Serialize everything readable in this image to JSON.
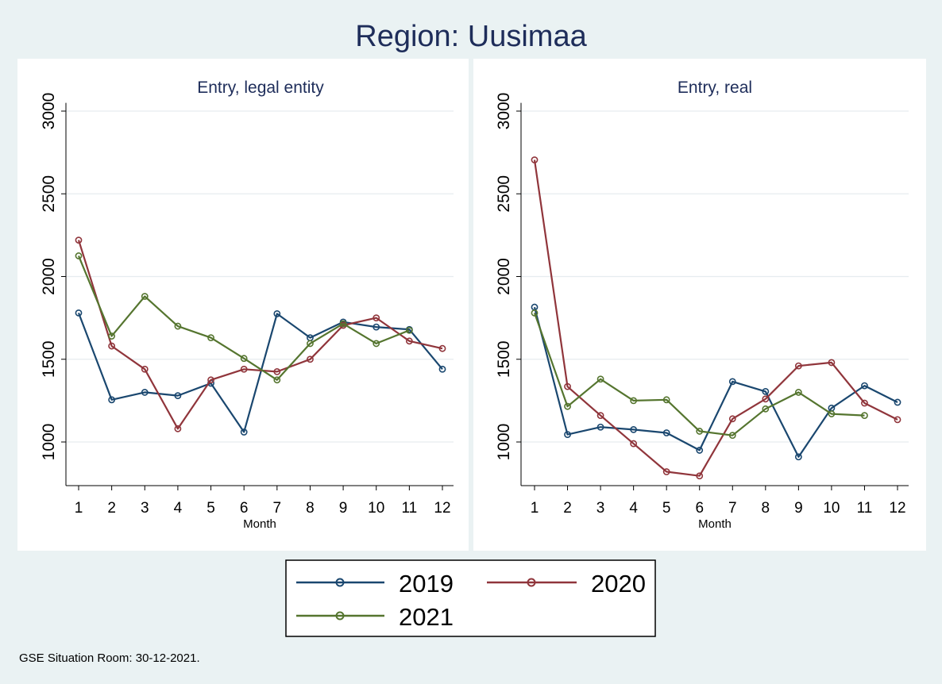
{
  "title": "Region: Uusimaa",
  "footnote": "GSE Situation Room: 30-12-2021.",
  "colors": {
    "2019": "#1a476f",
    "2020": "#90353b",
    "2021": "#55752f",
    "title": "#1e2d5a",
    "background": "#eaf2f3",
    "panel": "#ffffff",
    "grid": "#e6ecef"
  },
  "legend": {
    "items": [
      "2019",
      "2020",
      "2021"
    ]
  },
  "chart_data": [
    {
      "type": "line",
      "title": "Entry, legal entity",
      "xlabel": "Month",
      "ylabel": "",
      "x": [
        1,
        2,
        3,
        4,
        5,
        6,
        7,
        8,
        9,
        10,
        11,
        12
      ],
      "xticks": [
        "1",
        "2",
        "3",
        "4",
        "5",
        "6",
        "7",
        "8",
        "9",
        "10",
        "11",
        "12"
      ],
      "yticks": [
        1000,
        1500,
        2000,
        2500,
        3000
      ],
      "ytick_labels": [
        "1000",
        "1500",
        "2000",
        "2500",
        "3000"
      ],
      "ylim": [
        800,
        3050
      ],
      "grid": true,
      "series": [
        {
          "name": "2019",
          "values": [
            1780,
            1255,
            1300,
            1280,
            1355,
            1060,
            1775,
            1630,
            1725,
            1695,
            1680,
            1440
          ]
        },
        {
          "name": "2020",
          "values": [
            2220,
            1580,
            1440,
            1080,
            1375,
            1440,
            1425,
            1500,
            1705,
            1750,
            1610,
            1565
          ]
        },
        {
          "name": "2021",
          "values": [
            2125,
            1640,
            1880,
            1700,
            1630,
            1505,
            1375,
            1595,
            1715,
            1595,
            1675,
            null
          ]
        }
      ]
    },
    {
      "type": "line",
      "title": "Entry, real",
      "xlabel": "Month",
      "ylabel": "",
      "x": [
        1,
        2,
        3,
        4,
        5,
        6,
        7,
        8,
        9,
        10,
        11,
        12
      ],
      "xticks": [
        "1",
        "2",
        "3",
        "4",
        "5",
        "6",
        "7",
        "8",
        "9",
        "10",
        "11",
        "12"
      ],
      "yticks": [
        1000,
        1500,
        2000,
        2500,
        3000
      ],
      "ytick_labels": [
        "1000",
        "1500",
        "2000",
        "2500",
        "3000"
      ],
      "ylim": [
        800,
        3050
      ],
      "grid": true,
      "series": [
        {
          "name": "2019",
          "values": [
            1815,
            1045,
            1090,
            1075,
            1055,
            950,
            1365,
            1305,
            910,
            1205,
            1340,
            1240
          ]
        },
        {
          "name": "2020",
          "values": [
            2705,
            1335,
            1160,
            990,
            820,
            795,
            1140,
            1260,
            1460,
            1480,
            1235,
            1135
          ]
        },
        {
          "name": "2021",
          "values": [
            1780,
            1215,
            1380,
            1250,
            1255,
            1065,
            1040,
            1200,
            1300,
            1170,
            1160,
            null
          ]
        }
      ]
    }
  ]
}
